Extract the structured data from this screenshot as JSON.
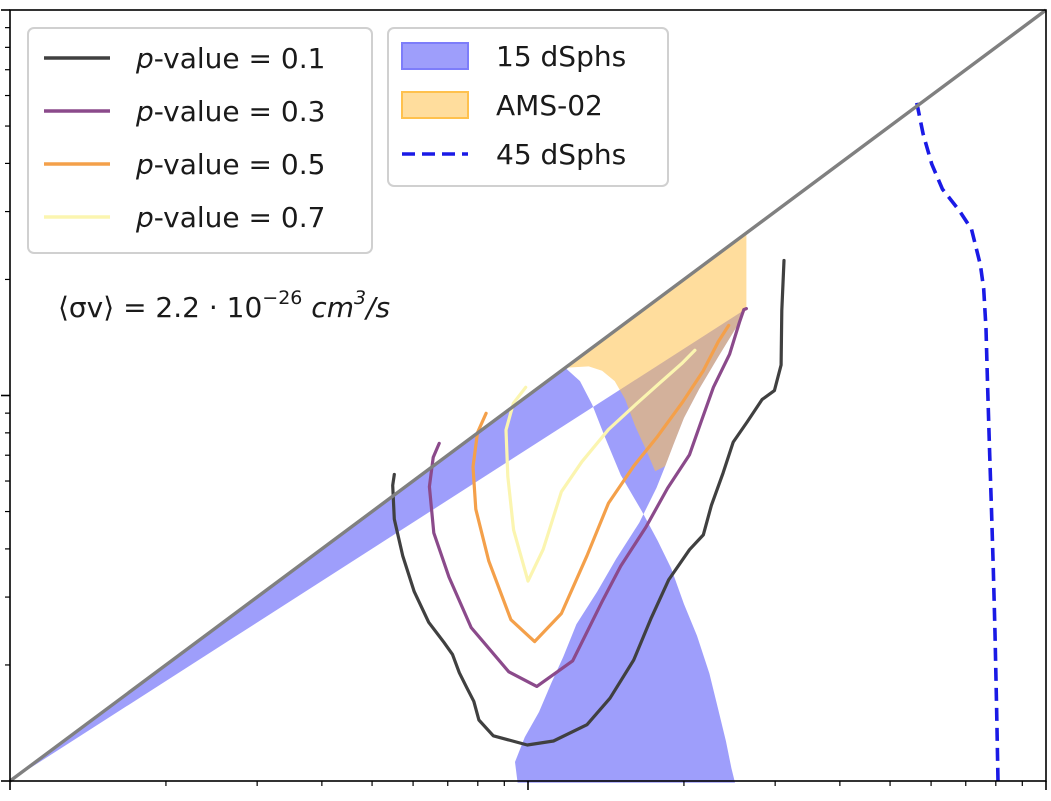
{
  "chart_data": {
    "type": "contour",
    "title": "",
    "xlabel": "",
    "ylabel": "",
    "xscale": "log",
    "yscale": "log",
    "xlim": [
      1,
      100
    ],
    "ylim": [
      1,
      100
    ],
    "grid": false,
    "diagonal_line": {
      "color": "#808080",
      "points": [
        [
          1,
          1
        ],
        [
          100,
          100
        ]
      ]
    },
    "contours": [
      {
        "name_math": "p",
        "name_text": "-value",
        "name_eq": " = 0.1",
        "color": "#404040",
        "points": [
          [
            5.52,
            6.24
          ],
          [
            5.48,
            5.85
          ],
          [
            5.52,
            4.78
          ],
          [
            5.73,
            3.84
          ],
          [
            6.03,
            3.1
          ],
          [
            6.43,
            2.58
          ],
          [
            6.88,
            2.29
          ],
          [
            7.15,
            2.13
          ],
          [
            7.37,
            1.91
          ],
          [
            7.61,
            1.75
          ],
          [
            7.86,
            1.61
          ],
          [
            8.04,
            1.44
          ],
          [
            8.57,
            1.31
          ],
          [
            9.97,
            1.24
          ],
          [
            11.2,
            1.27
          ],
          [
            13.0,
            1.4
          ],
          [
            14.4,
            1.64
          ],
          [
            16.0,
            2.06
          ],
          [
            17.3,
            2.65
          ],
          [
            18.7,
            3.33
          ],
          [
            20.5,
            3.98
          ],
          [
            21.8,
            4.35
          ],
          [
            22.6,
            5.19
          ],
          [
            23.8,
            6.3
          ],
          [
            24.9,
            7.57
          ],
          [
            26.5,
            8.54
          ],
          [
            28.3,
            9.76
          ],
          [
            29.9,
            10.3
          ],
          [
            30.8,
            12.0
          ],
          [
            30.9,
            16.6
          ],
          [
            31.2,
            22.4
          ]
        ]
      },
      {
        "name_math": "p",
        "name_text": "-value",
        "name_eq": " = 0.3",
        "color": "#8b4a8b",
        "points": [
          [
            6.74,
            7.51
          ],
          [
            6.56,
            6.91
          ],
          [
            6.45,
            5.8
          ],
          [
            6.58,
            4.4
          ],
          [
            7.04,
            3.38
          ],
          [
            7.77,
            2.5
          ],
          [
            9.18,
            1.92
          ],
          [
            10.4,
            1.76
          ],
          [
            12.2,
            2.05
          ],
          [
            13.9,
            2.92
          ],
          [
            15.1,
            3.61
          ],
          [
            16.9,
            4.56
          ],
          [
            18.6,
            5.75
          ],
          [
            20.5,
            7.02
          ],
          [
            21.6,
            8.56
          ],
          [
            22.8,
            10.5
          ],
          [
            24.5,
            12.8
          ],
          [
            25.6,
            15.5
          ],
          [
            26.1,
            16.7
          ],
          [
            26.4,
            16.8
          ]
        ]
      },
      {
        "name_math": "p",
        "name_text": "-value",
        "name_eq": " = 0.5",
        "color": "#f4a04a",
        "points": [
          [
            8.3,
            8.99
          ],
          [
            7.99,
            8.01
          ],
          [
            7.83,
            6.53
          ],
          [
            7.93,
            5.07
          ],
          [
            8.4,
            3.72
          ],
          [
            9.27,
            2.62
          ],
          [
            10.3,
            2.3
          ],
          [
            11.6,
            2.72
          ],
          [
            13.0,
            3.84
          ],
          [
            14.3,
            5.26
          ],
          [
            16.0,
            6.56
          ],
          [
            17.8,
            7.84
          ],
          [
            19.9,
            9.63
          ],
          [
            21.8,
            11.6
          ],
          [
            23.3,
            13.8
          ],
          [
            24.4,
            15.2
          ]
        ]
      },
      {
        "name_math": "p",
        "name_text": "-value",
        "name_eq": " = 0.7",
        "color": "#fbf5b0",
        "points": [
          [
            9.9,
            10.5
          ],
          [
            9.37,
            9.55
          ],
          [
            9.07,
            8.14
          ],
          [
            9.14,
            6.17
          ],
          [
            9.38,
            4.48
          ],
          [
            10.0,
            3.3
          ],
          [
            10.7,
            3.99
          ],
          [
            11.6,
            5.63
          ],
          [
            12.7,
            6.73
          ],
          [
            14.3,
            8.16
          ],
          [
            16.1,
            9.45
          ],
          [
            18.0,
            10.8
          ],
          [
            19.8,
            12.1
          ],
          [
            21.0,
            13.1
          ]
        ]
      }
    ],
    "filled_regions": [
      {
        "name": "15 dSphs",
        "color": "#7d7dfa",
        "opacity": 0.75,
        "points": [
          [
            1,
            1
          ],
          [
            11.8,
            11.8
          ],
          [
            12.6,
            10.9
          ],
          [
            13.3,
            9.47
          ],
          [
            14.1,
            7.76
          ],
          [
            15.1,
            6.22
          ],
          [
            16.6,
            5.0
          ],
          [
            17.8,
            4.2
          ],
          [
            18.9,
            3.56
          ],
          [
            20.0,
            2.88
          ],
          [
            21.2,
            2.38
          ],
          [
            22.4,
            1.9
          ],
          [
            23.3,
            1.53
          ],
          [
            24.1,
            1.27
          ],
          [
            24.7,
            1.08
          ],
          [
            25.1,
            0.99
          ],
          [
            9.55,
            0.99
          ],
          [
            9.44,
            1.12
          ],
          [
            9.86,
            1.3
          ],
          [
            10.5,
            1.51
          ],
          [
            11.1,
            1.8
          ],
          [
            11.7,
            2.1
          ],
          [
            12.4,
            2.55
          ],
          [
            13.6,
            3.1
          ],
          [
            14.8,
            3.77
          ],
          [
            16.4,
            4.68
          ],
          [
            17.7,
            5.76
          ],
          [
            18.4,
            6.56
          ],
          [
            19.1,
            7.48
          ],
          [
            20.0,
            8.74
          ],
          [
            21.4,
            10.4
          ],
          [
            23.3,
            12.6
          ],
          [
            25.6,
            15.5
          ],
          [
            26.1,
            16.5
          ],
          [
            26.4,
            16.8
          ],
          [
            1,
            1
          ]
        ]
      },
      {
        "name": "AMS-02",
        "color": "#ffc14d",
        "opacity": 0.55,
        "points": [
          [
            11.8,
            11.8
          ],
          [
            26.4,
            26.4
          ],
          [
            26.4,
            16.8
          ],
          [
            25.6,
            15.5
          ],
          [
            23.3,
            12.6
          ],
          [
            21.4,
            10.4
          ],
          [
            20.0,
            8.74
          ],
          [
            19.1,
            7.48
          ],
          [
            18.4,
            6.56
          ],
          [
            17.6,
            6.36
          ],
          [
            16.9,
            7.23
          ],
          [
            16.1,
            8.34
          ],
          [
            15.4,
            9.79
          ],
          [
            14.7,
            10.9
          ],
          [
            13.9,
            11.6
          ],
          [
            13.1,
            11.9
          ],
          [
            11.8,
            11.8
          ]
        ]
      }
    ],
    "dashed_line": {
      "name": "45 dSphs",
      "color": "#1a1ae6",
      "points": [
        [
          56.3,
          57.4
        ],
        [
          57.9,
          47.7
        ],
        [
          60.2,
          39.8
        ],
        [
          63.1,
          34.3
        ],
        [
          68.0,
          30.2
        ],
        [
          71.8,
          27.0
        ],
        [
          74.7,
          21.8
        ],
        [
          75.8,
          18.9
        ],
        [
          76.6,
          14.9
        ],
        [
          77.1,
          10.8
        ],
        [
          77.8,
          7.29
        ],
        [
          78.5,
          5.04
        ],
        [
          79.1,
          3.55
        ],
        [
          79.7,
          2.42
        ],
        [
          80.3,
          1.55
        ],
        [
          80.8,
          1.0
        ]
      ]
    },
    "legend": {
      "placement": "top-left",
      "columns": [
        [
          "p-value = 0.1",
          "p-value = 0.3",
          "p-value = 0.5",
          "p-value = 0.7"
        ],
        [
          "15 dSphs",
          "AMS-02",
          "45 dSphs"
        ]
      ]
    },
    "annotation": {
      "text_prefix": "⟨σv⟩ = 2.2 · 10",
      "exponent": "−26",
      "unit_base": " cm",
      "unit_exp": "3",
      "unit_tail": "/s"
    }
  }
}
